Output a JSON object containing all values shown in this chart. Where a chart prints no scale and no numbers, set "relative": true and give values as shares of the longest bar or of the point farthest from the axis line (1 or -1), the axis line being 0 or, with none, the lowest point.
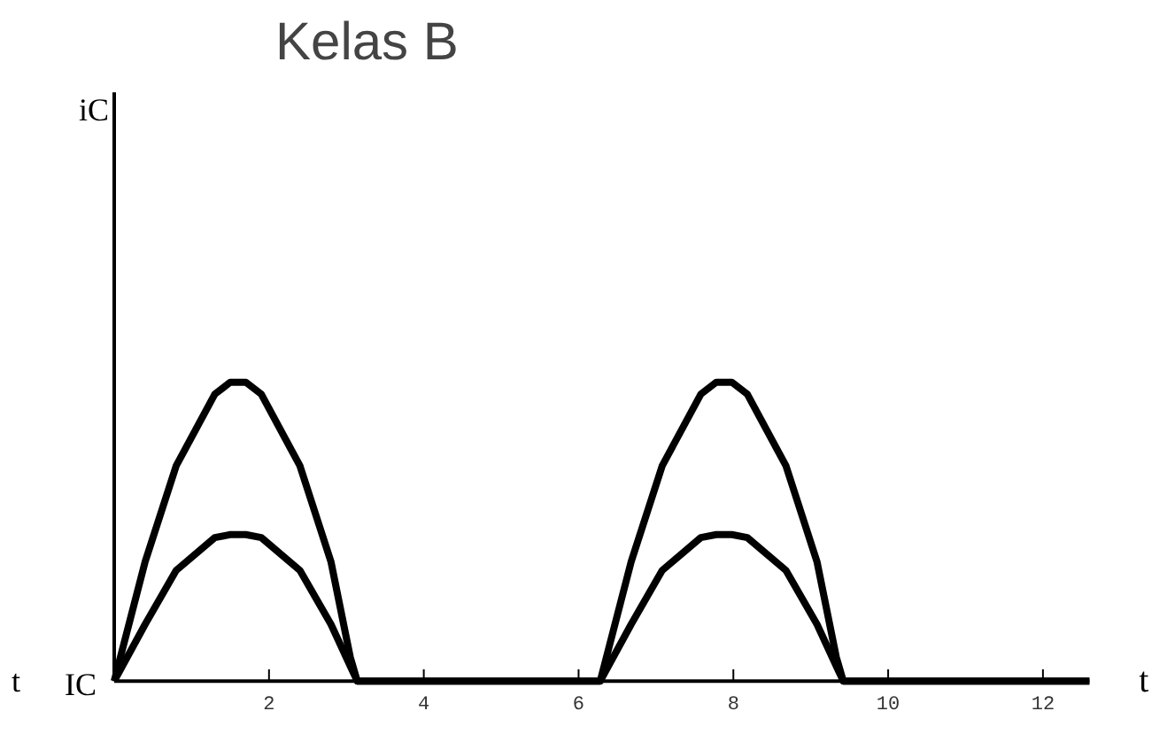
{
  "chart_data": {
    "type": "line",
    "title": "Kelas B",
    "xlabel": "t",
    "relative": true,
    "annotations": [
      {
        "text": "t",
        "x": 0,
        "y": 0
      },
      {
        "text": "IC",
        "x": 0,
        "y": 0
      },
      "iC"
    ],
    "xlim": [
      0,
      12.6
    ],
    "xticks": [
      2,
      4,
      6,
      8,
      10,
      12
    ],
    "grid": false,
    "marker": "none",
    "line_style": "solid",
    "series": [
      {
        "color": "#000000",
        "x": [
          0,
          0.4,
          0.8,
          1.3,
          1.5,
          1.7,
          1.9,
          2.4,
          2.8,
          3.05,
          3.14,
          6.28,
          6.68,
          7.08,
          7.58,
          7.78,
          7.98,
          8.18,
          8.68,
          9.08,
          9.33,
          9.42,
          12.6
        ],
        "values": [
          0,
          0.4,
          0.72,
          0.96,
          1.0,
          1.0,
          0.96,
          0.72,
          0.4,
          0.08,
          0,
          0,
          0.4,
          0.72,
          0.96,
          1.0,
          1.0,
          0.96,
          0.72,
          0.4,
          0.08,
          0,
          0
        ]
      },
      {
        "color": "#000000",
        "x": [
          0,
          0.4,
          0.8,
          1.3,
          1.5,
          1.7,
          1.9,
          2.4,
          2.8,
          3.05,
          3.14,
          6.28,
          6.68,
          7.08,
          7.58,
          7.78,
          7.98,
          8.18,
          8.68,
          9.08,
          9.33,
          9.42,
          12.6
        ],
        "values": [
          0,
          0.19,
          0.37,
          0.48,
          0.49,
          0.49,
          0.48,
          0.37,
          0.19,
          0.05,
          0,
          0,
          0.19,
          0.37,
          0.48,
          0.49,
          0.49,
          0.48,
          0.37,
          0.19,
          0.05,
          0,
          0
        ]
      }
    ]
  }
}
